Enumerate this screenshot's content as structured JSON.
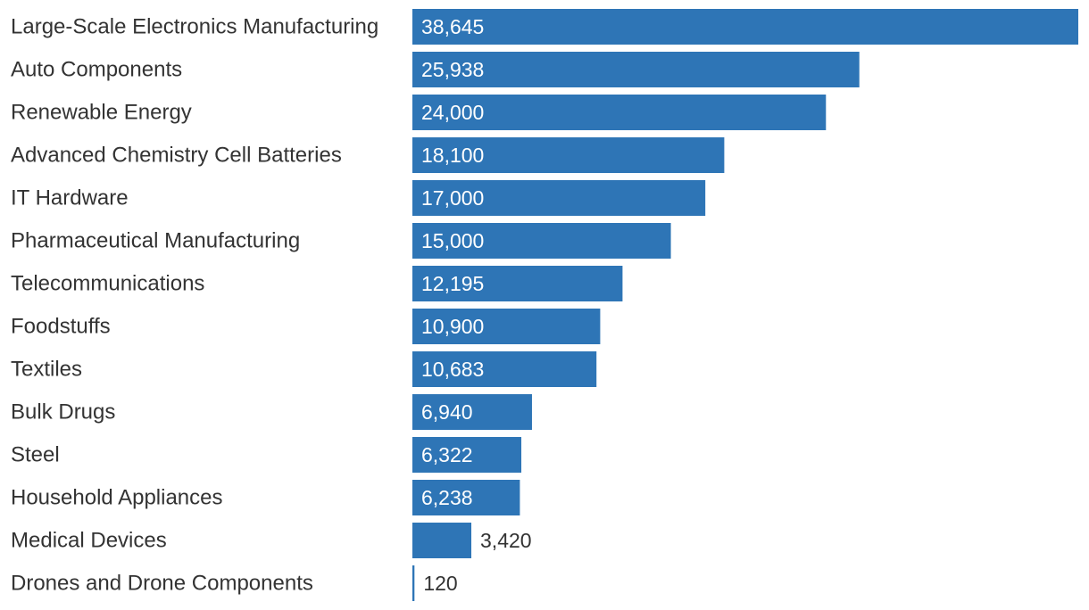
{
  "chart_data": {
    "type": "bar",
    "orientation": "horizontal",
    "title": "",
    "xlabel": "",
    "ylabel": "",
    "grid": false,
    "bar_color": "#2E75B6",
    "categories": [
      "Large-Scale Electronics Manufacturing",
      "Auto Components",
      "Renewable Energy",
      "Advanced Chemistry Cell Batteries",
      "IT Hardware",
      "Pharmaceutical Manufacturing",
      "Telecommunications",
      "Foodstuffs",
      "Textiles",
      "Bulk Drugs",
      "Steel",
      "Household Appliances",
      "Medical Devices",
      "Drones and Drone Components"
    ],
    "values": [
      38645,
      25938,
      24000,
      18100,
      17000,
      15000,
      12195,
      10900,
      10683,
      6940,
      6322,
      6238,
      3420,
      120
    ],
    "value_labels": [
      "38,645",
      "25,938",
      "24,000",
      "18,100",
      "17,000",
      "15,000",
      "12,195",
      "10,900",
      "10,683",
      "6,940",
      "6,322",
      "6,238",
      "3,420",
      "120"
    ],
    "xlim": [
      0,
      38645
    ]
  }
}
